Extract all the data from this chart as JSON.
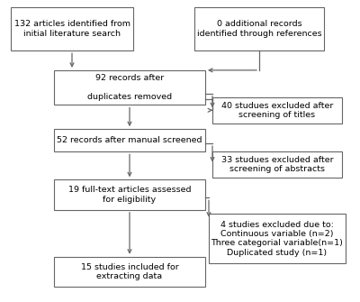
{
  "box_left_texts": [
    "132 articles identified from\ninitial literature search",
    "92 records after\n\nduplicates removed",
    "52 records after manual screened",
    "19 full-text articles assessed\nfor eligibility",
    "15 studies included for\nextracting data"
  ],
  "box_right_texts": [
    "0 additional records\nidentified through references",
    "40 studues excluded after\nscreening of titles",
    "33 studues excluded after\nscreening of abstracts",
    "4 studies excluded due to:\nContinuous variable (n=2)\nThree categorial variable(n=1)\nDuplicated study (n=1)"
  ],
  "bg_color": "#ffffff",
  "box_edge_color": "#666666",
  "arrow_color": "#666666",
  "font_size": 6.8,
  "text_color": "#000000"
}
